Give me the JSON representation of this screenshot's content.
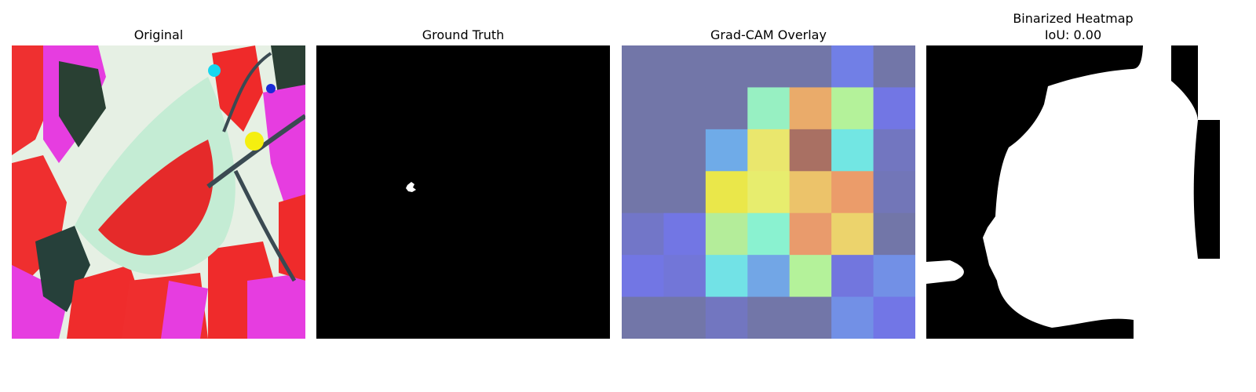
{
  "figure": {
    "panels": [
      {
        "title": "Original"
      },
      {
        "title": "Ground Truth"
      },
      {
        "title": "Grad-CAM Overlay"
      },
      {
        "title_line1": "Binarized Heatmap",
        "title_line2": "IoU: 0.00"
      }
    ],
    "colors": {
      "background": "#ffffff",
      "mask_black": "#000000",
      "mask_white": "#ffffff"
    },
    "gradcam_grid": {
      "rows": 7,
      "cols": 7,
      "cells": [
        [
          "#7276a8",
          "#7276a8",
          "#7276a8",
          "#7276a8",
          "#7276a8",
          "#717fe6",
          "#7276a8"
        ],
        [
          "#7276a8",
          "#7276a8",
          "#7276a8",
          "#97f0c2",
          "#eaab6a",
          "#b4f29a",
          "#7276e4"
        ],
        [
          "#7276a8",
          "#7276a8",
          "#6fabe8",
          "#eae76d",
          "#a97063",
          "#72e6e3",
          "#7276c0"
        ],
        [
          "#7276a8",
          "#7276a8",
          "#eae74a",
          "#e7ed6e",
          "#ecc36a",
          "#eb9c6a",
          "#7276b8"
        ],
        [
          "#7276c8",
          "#7276e4",
          "#b4ed9a",
          "#8af2d0",
          "#e99b6c",
          "#ecd36c",
          "#7276a8"
        ],
        [
          "#7276e4",
          "#7276d8",
          "#72e2e6",
          "#72a6e6",
          "#b4f29a",
          "#7276de",
          "#7290e6"
        ],
        [
          "#7276a8",
          "#7276a8",
          "#7276c0",
          "#7276a8",
          "#7276a8",
          "#7290e6",
          "#7276e6"
        ]
      ]
    }
  }
}
